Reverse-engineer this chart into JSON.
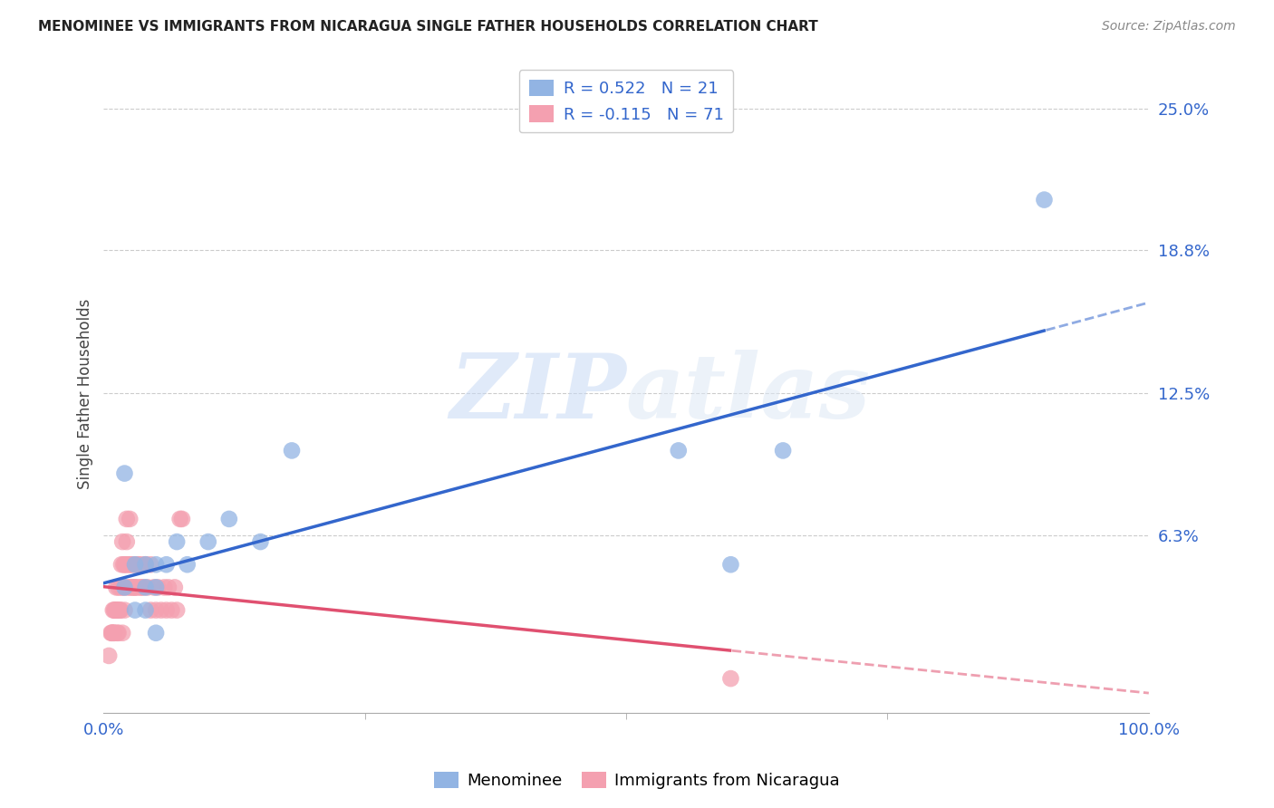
{
  "title": "MENOMINEE VS IMMIGRANTS FROM NICARAGUA SINGLE FATHER HOUSEHOLDS CORRELATION CHART",
  "source": "Source: ZipAtlas.com",
  "ylabel": "Single Father Households",
  "xlim": [
    0.0,
    1.0
  ],
  "ylim": [
    -0.015,
    0.265
  ],
  "xtick_labels": [
    "0.0%",
    "100.0%"
  ],
  "xtick_positions": [
    0.0,
    1.0
  ],
  "ytick_labels": [
    "6.3%",
    "12.5%",
    "18.8%",
    "25.0%"
  ],
  "ytick_values": [
    0.063,
    0.125,
    0.188,
    0.25
  ],
  "menominee_color": "#92b4e3",
  "nicaragua_color": "#f4a0b0",
  "menominee_line_color": "#3366cc",
  "nicaragua_line_color": "#e05070",
  "R_menominee": 0.522,
  "N_menominee": 21,
  "R_nicaragua": -0.115,
  "N_nicaragua": 71,
  "watermark_zip": "ZIP",
  "watermark_atlas": "atlas",
  "background_color": "#ffffff",
  "menominee_x": [
    0.02,
    0.02,
    0.03,
    0.03,
    0.04,
    0.04,
    0.04,
    0.05,
    0.05,
    0.05,
    0.06,
    0.07,
    0.08,
    0.1,
    0.12,
    0.15,
    0.18,
    0.55,
    0.6,
    0.65,
    0.9
  ],
  "menominee_y": [
    0.09,
    0.04,
    0.05,
    0.03,
    0.04,
    0.03,
    0.05,
    0.05,
    0.04,
    0.02,
    0.05,
    0.06,
    0.05,
    0.06,
    0.07,
    0.06,
    0.1,
    0.1,
    0.05,
    0.1,
    0.21
  ],
  "nicaragua_x": [
    0.005,
    0.007,
    0.008,
    0.009,
    0.01,
    0.01,
    0.011,
    0.012,
    0.012,
    0.013,
    0.013,
    0.014,
    0.015,
    0.016,
    0.016,
    0.017,
    0.018,
    0.018,
    0.019,
    0.02,
    0.02,
    0.021,
    0.022,
    0.022,
    0.023,
    0.024,
    0.025,
    0.025,
    0.026,
    0.027,
    0.028,
    0.03,
    0.03,
    0.032,
    0.033,
    0.035,
    0.036,
    0.038,
    0.04,
    0.042,
    0.045,
    0.048,
    0.05,
    0.052,
    0.055,
    0.058,
    0.06,
    0.062,
    0.065,
    0.068,
    0.07,
    0.073,
    0.075,
    0.008,
    0.009,
    0.01,
    0.011,
    0.012,
    0.014,
    0.016,
    0.018,
    0.02,
    0.022,
    0.025,
    0.028,
    0.03,
    0.033,
    0.036,
    0.04,
    0.045,
    0.6
  ],
  "nicaragua_y": [
    0.01,
    0.02,
    0.02,
    0.03,
    0.03,
    0.02,
    0.03,
    0.04,
    0.03,
    0.02,
    0.03,
    0.04,
    0.03,
    0.04,
    0.03,
    0.05,
    0.04,
    0.06,
    0.05,
    0.04,
    0.05,
    0.05,
    0.06,
    0.05,
    0.04,
    0.05,
    0.04,
    0.05,
    0.05,
    0.04,
    0.05,
    0.04,
    0.05,
    0.04,
    0.05,
    0.04,
    0.05,
    0.04,
    0.05,
    0.04,
    0.03,
    0.04,
    0.03,
    0.04,
    0.03,
    0.04,
    0.03,
    0.04,
    0.03,
    0.04,
    0.03,
    0.07,
    0.07,
    0.02,
    0.02,
    0.02,
    0.03,
    0.03,
    0.02,
    0.03,
    0.02,
    0.03,
    0.07,
    0.07,
    0.04,
    0.04,
    0.05,
    0.04,
    0.05,
    0.05,
    0.0
  ]
}
